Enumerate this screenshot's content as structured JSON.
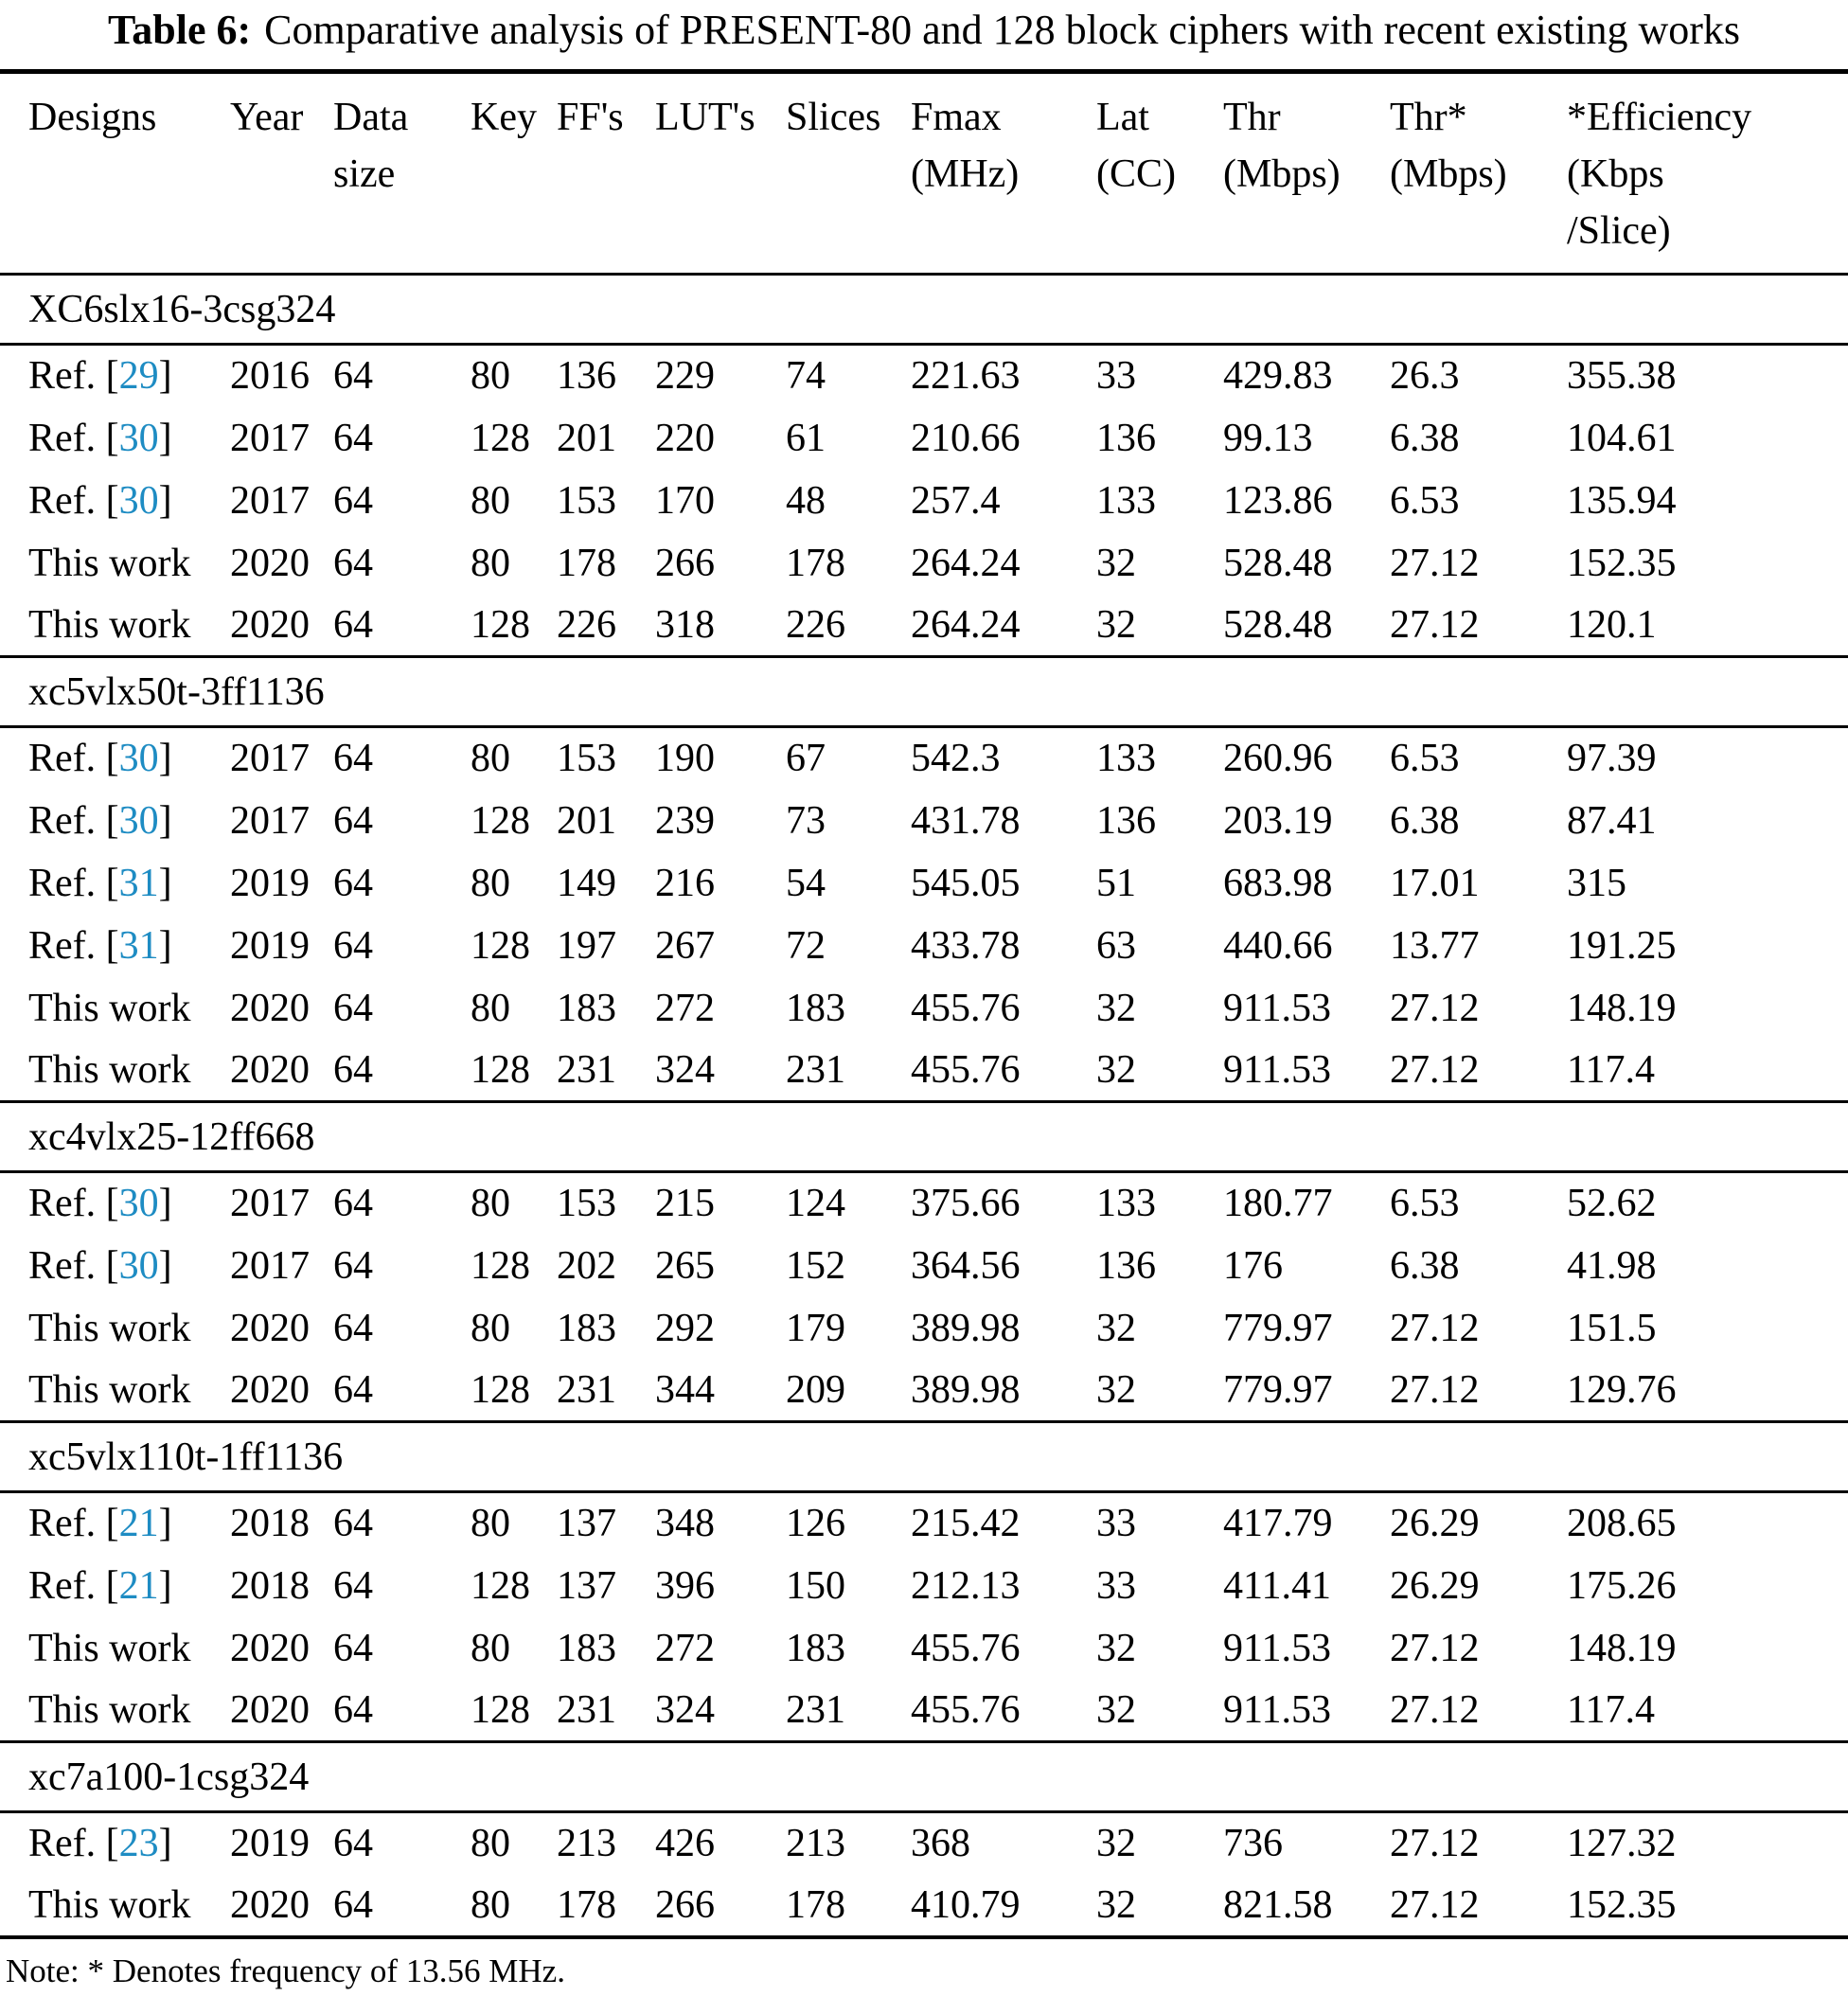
{
  "title": {
    "label": "Table 6:",
    "text": "Comparative analysis of PRESENT-80 and 128 block ciphers with recent existing works"
  },
  "citation_color": "#1e8cc3",
  "columns": [
    {
      "id": "designs",
      "lines": [
        "Designs"
      ]
    },
    {
      "id": "year",
      "lines": [
        "Year"
      ]
    },
    {
      "id": "data-size",
      "lines": [
        "Data",
        "size"
      ]
    },
    {
      "id": "key",
      "lines": [
        "Key"
      ]
    },
    {
      "id": "ffs",
      "lines": [
        "FF's"
      ]
    },
    {
      "id": "luts",
      "lines": [
        "LUT's"
      ]
    },
    {
      "id": "slices",
      "lines": [
        "Slices"
      ]
    },
    {
      "id": "fmax",
      "lines": [
        "Fmax",
        "(MHz)"
      ]
    },
    {
      "id": "lat",
      "lines": [
        "Lat",
        "(CC)"
      ]
    },
    {
      "id": "thr",
      "lines": [
        "Thr",
        "(Mbps)"
      ]
    },
    {
      "id": "thr-star",
      "lines": [
        "Thr*",
        "(Mbps)"
      ]
    },
    {
      "id": "efficiency",
      "lines": [
        "*Efficiency",
        "(Kbps",
        "/Slice)"
      ]
    }
  ],
  "sections": [
    {
      "device": "XC6slx16-3csg324",
      "rows": [
        {
          "design_prefix": "Ref. [",
          "ref": "29",
          "design_suffix": "]",
          "year": "2016",
          "data_size": "64",
          "key": "80",
          "ffs": "136",
          "luts": "229",
          "slices": "74",
          "fmax": "221.63",
          "lat": "33",
          "thr": "429.83",
          "thr_star": "26.3",
          "efficiency": "355.38"
        },
        {
          "design_prefix": "Ref. [",
          "ref": "30",
          "design_suffix": "]",
          "year": "2017",
          "data_size": "64",
          "key": "128",
          "ffs": "201",
          "luts": "220",
          "slices": "61",
          "fmax": "210.66",
          "lat": "136",
          "thr": "99.13",
          "thr_star": "6.38",
          "efficiency": "104.61"
        },
        {
          "design_prefix": "Ref. [",
          "ref": "30",
          "design_suffix": "]",
          "year": "2017",
          "data_size": "64",
          "key": "80",
          "ffs": "153",
          "luts": "170",
          "slices": "48",
          "fmax": "257.4",
          "lat": "133",
          "thr": "123.86",
          "thr_star": "6.53",
          "efficiency": "135.94"
        },
        {
          "design": "This work",
          "year": "2020",
          "data_size": "64",
          "key": "80",
          "ffs": "178",
          "luts": "266",
          "slices": "178",
          "fmax": "264.24",
          "lat": "32",
          "thr": "528.48",
          "thr_star": "27.12",
          "efficiency": "152.35"
        },
        {
          "design": "This work",
          "year": "2020",
          "data_size": "64",
          "key": "128",
          "ffs": "226",
          "luts": "318",
          "slices": "226",
          "fmax": "264.24",
          "lat": "32",
          "thr": "528.48",
          "thr_star": "27.12",
          "efficiency": "120.1"
        }
      ]
    },
    {
      "device": "xc5vlx50t-3ff1136",
      "rows": [
        {
          "design_prefix": "Ref. [",
          "ref": "30",
          "design_suffix": "]",
          "year": "2017",
          "data_size": "64",
          "key": "80",
          "ffs": "153",
          "luts": "190",
          "slices": "67",
          "fmax": "542.3",
          "lat": "133",
          "thr": "260.96",
          "thr_star": "6.53",
          "efficiency": "97.39"
        },
        {
          "design_prefix": "Ref. [",
          "ref": "30",
          "design_suffix": "]",
          "year": "2017",
          "data_size": "64",
          "key": "128",
          "ffs": "201",
          "luts": "239",
          "slices": "73",
          "fmax": "431.78",
          "lat": "136",
          "thr": "203.19",
          "thr_star": "6.38",
          "efficiency": "87.41"
        },
        {
          "design_prefix": "Ref. [",
          "ref": "31",
          "design_suffix": "]",
          "year": "2019",
          "data_size": "64",
          "key": "80",
          "ffs": "149",
          "luts": "216",
          "slices": "54",
          "fmax": "545.05",
          "lat": "51",
          "thr": "683.98",
          "thr_star": "17.01",
          "efficiency": "315"
        },
        {
          "design_prefix": "Ref. [",
          "ref": "31",
          "design_suffix": "]",
          "year": "2019",
          "data_size": "64",
          "key": "128",
          "ffs": "197",
          "luts": "267",
          "slices": "72",
          "fmax": "433.78",
          "lat": "63",
          "thr": "440.66",
          "thr_star": "13.77",
          "efficiency": "191.25"
        },
        {
          "design": "This work",
          "year": "2020",
          "data_size": "64",
          "key": "80",
          "ffs": "183",
          "luts": "272",
          "slices": "183",
          "fmax": "455.76",
          "lat": "32",
          "thr": "911.53",
          "thr_star": "27.12",
          "efficiency": "148.19"
        },
        {
          "design": "This work",
          "year": "2020",
          "data_size": "64",
          "key": "128",
          "ffs": "231",
          "luts": "324",
          "slices": "231",
          "fmax": "455.76",
          "lat": "32",
          "thr": "911.53",
          "thr_star": "27.12",
          "efficiency": "117.4"
        }
      ]
    },
    {
      "device": "xc4vlx25-12ff668",
      "rows": [
        {
          "design_prefix": "Ref. [",
          "ref": "30",
          "design_suffix": "]",
          "year": "2017",
          "data_size": "64",
          "key": "80",
          "ffs": "153",
          "luts": "215",
          "slices": "124",
          "fmax": "375.66",
          "lat": "133",
          "thr": "180.77",
          "thr_star": "6.53",
          "efficiency": "52.62"
        },
        {
          "design_prefix": "Ref. [",
          "ref": "30",
          "design_suffix": "]",
          "year": "2017",
          "data_size": "64",
          "key": "128",
          "ffs": "202",
          "luts": "265",
          "slices": "152",
          "fmax": "364.56",
          "lat": "136",
          "thr": "176",
          "thr_star": "6.38",
          "efficiency": "41.98"
        },
        {
          "design": "This work",
          "year": "2020",
          "data_size": "64",
          "key": "80",
          "ffs": "183",
          "luts": "292",
          "slices": "179",
          "fmax": "389.98",
          "lat": "32",
          "thr": "779.97",
          "thr_star": "27.12",
          "efficiency": "151.5"
        },
        {
          "design": "This work",
          "year": "2020",
          "data_size": "64",
          "key": "128",
          "ffs": "231",
          "luts": "344",
          "slices": "209",
          "fmax": "389.98",
          "lat": "32",
          "thr": "779.97",
          "thr_star": "27.12",
          "efficiency": "129.76"
        }
      ]
    },
    {
      "device": "xc5vlx110t-1ff1136",
      "rows": [
        {
          "design_prefix": "Ref. [",
          "ref": "21",
          "design_suffix": "]",
          "year": "2018",
          "data_size": "64",
          "key": "80",
          "ffs": "137",
          "luts": "348",
          "slices": "126",
          "fmax": "215.42",
          "lat": "33",
          "thr": "417.79",
          "thr_star": "26.29",
          "efficiency": "208.65"
        },
        {
          "design_prefix": "Ref. [",
          "ref": "21",
          "design_suffix": "]",
          "year": "2018",
          "data_size": "64",
          "key": "128",
          "ffs": "137",
          "luts": "396",
          "slices": "150",
          "fmax": "212.13",
          "lat": "33",
          "thr": "411.41",
          "thr_star": "26.29",
          "efficiency": "175.26"
        },
        {
          "design": "This work",
          "year": "2020",
          "data_size": "64",
          "key": "80",
          "ffs": "183",
          "luts": "272",
          "slices": "183",
          "fmax": "455.76",
          "lat": "32",
          "thr": "911.53",
          "thr_star": "27.12",
          "efficiency": "148.19"
        },
        {
          "design": "This work",
          "year": "2020",
          "data_size": "64",
          "key": "128",
          "ffs": "231",
          "luts": "324",
          "slices": "231",
          "fmax": "455.76",
          "lat": "32",
          "thr": "911.53",
          "thr_star": "27.12",
          "efficiency": "117.4"
        }
      ]
    },
    {
      "device": "xc7a100-1csg324",
      "rows": [
        {
          "design_prefix": "Ref. [",
          "ref": "23",
          "design_suffix": "]",
          "year": "2019",
          "data_size": "64",
          "key": "80",
          "ffs": "213",
          "luts": "426",
          "slices": "213",
          "fmax": "368",
          "lat": "32",
          "thr": "736",
          "thr_star": "27.12",
          "efficiency": "127.32"
        },
        {
          "design": "This work",
          "year": "2020",
          "data_size": "64",
          "key": "80",
          "ffs": "178",
          "luts": "266",
          "slices": "178",
          "fmax": "410.79",
          "lat": "32",
          "thr": "821.58",
          "thr_star": "27.12",
          "efficiency": "152.35"
        }
      ]
    }
  ],
  "note": "Note: * Denotes frequency of 13.56 MHz."
}
